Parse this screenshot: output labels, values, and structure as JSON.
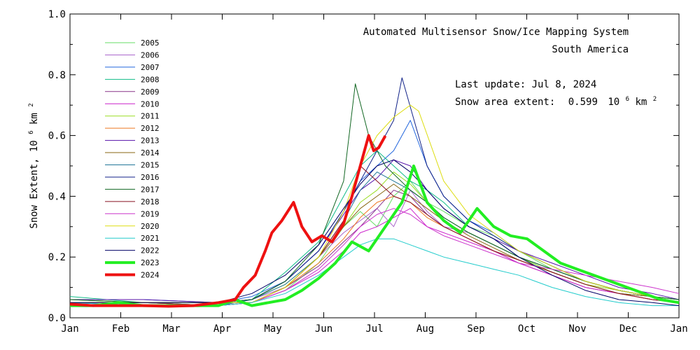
{
  "chart_data": {
    "type": "line",
    "title_lines": [
      "Automated  Multisensor Snow/Ice Mapping System",
      "South America"
    ],
    "update_text": "Last update: Jul  8, 2024",
    "extent_label": "Snow area extent:",
    "extent_value": "0.599",
    "extent_unit_base": "10",
    "extent_unit_exp": "6",
    "extent_unit_km": "km",
    "extent_unit_km_exp": "2",
    "ylabel_main": "Snow Extent,  10",
    "ylabel_exp1": "6",
    "ylabel_km": "km",
    "ylabel_exp2": "2",
    "ylim": [
      0,
      1.0
    ],
    "yticks": [
      "0.0",
      "0.2",
      "0.4",
      "0.6",
      "0.8",
      "1.0"
    ],
    "ytick_values": [
      0,
      0.2,
      0.4,
      0.6,
      0.8,
      1.0
    ],
    "xmonths": [
      "Jan",
      "Feb",
      "Mar",
      "Apr",
      "May",
      "Jun",
      "Jul",
      "Aug",
      "Sep",
      "Oct",
      "Nov",
      "Dec",
      "Jan"
    ],
    "legend_position": "upper-left",
    "grid": false,
    "series": [
      {
        "name": "2005",
        "color": "#66dd66",
        "width": 1,
        "x": [
          1,
          45,
          90,
          110,
          130,
          150,
          165,
          175,
          185,
          195,
          205,
          215,
          225,
          240,
          255,
          270,
          290,
          310,
          330,
          350,
          366
        ],
        "y": [
          0.06,
          0.05,
          0.05,
          0.05,
          0.09,
          0.18,
          0.3,
          0.35,
          0.3,
          0.4,
          0.45,
          0.38,
          0.35,
          0.3,
          0.27,
          0.22,
          0.16,
          0.12,
          0.09,
          0.07,
          0.06
        ]
      },
      {
        "name": "2006",
        "color": "#aa66cc",
        "width": 1,
        "x": [
          1,
          45,
          90,
          110,
          130,
          150,
          165,
          175,
          185,
          195,
          205,
          215,
          225,
          240,
          255,
          270,
          290,
          310,
          330,
          350,
          366
        ],
        "y": [
          0.05,
          0.05,
          0.04,
          0.06,
          0.1,
          0.2,
          0.28,
          0.32,
          0.36,
          0.3,
          0.42,
          0.35,
          0.3,
          0.28,
          0.24,
          0.2,
          0.15,
          0.11,
          0.08,
          0.07,
          0.05
        ]
      },
      {
        "name": "2007",
        "color": "#2266dd",
        "width": 1,
        "x": [
          1,
          45,
          90,
          110,
          130,
          150,
          165,
          175,
          185,
          195,
          205,
          215,
          225,
          240,
          255,
          270,
          290,
          310,
          330,
          350,
          366
        ],
        "y": [
          0.06,
          0.06,
          0.05,
          0.07,
          0.12,
          0.22,
          0.35,
          0.45,
          0.5,
          0.55,
          0.65,
          0.5,
          0.4,
          0.32,
          0.28,
          0.22,
          0.17,
          0.12,
          0.09,
          0.07,
          0.06
        ]
      },
      {
        "name": "2008",
        "color": "#11bb88",
        "width": 1,
        "x": [
          1,
          45,
          90,
          110,
          130,
          150,
          165,
          175,
          185,
          195,
          205,
          215,
          225,
          240,
          255,
          270,
          290,
          310,
          330,
          350,
          366
        ],
        "y": [
          0.07,
          0.05,
          0.05,
          0.06,
          0.15,
          0.25,
          0.4,
          0.5,
          0.55,
          0.5,
          0.45,
          0.42,
          0.38,
          0.3,
          0.26,
          0.2,
          0.15,
          0.11,
          0.08,
          0.07,
          0.06
        ]
      },
      {
        "name": "2009",
        "color": "#883388",
        "width": 1,
        "x": [
          1,
          45,
          90,
          110,
          130,
          150,
          165,
          175,
          185,
          195,
          205,
          215,
          225,
          240,
          255,
          270,
          290,
          310,
          330,
          350,
          366
        ],
        "y": [
          0.05,
          0.04,
          0.04,
          0.05,
          0.1,
          0.17,
          0.25,
          0.3,
          0.36,
          0.42,
          0.4,
          0.34,
          0.3,
          0.26,
          0.22,
          0.18,
          0.14,
          0.1,
          0.08,
          0.06,
          0.05
        ]
      },
      {
        "name": "2010",
        "color": "#cc22cc",
        "width": 1,
        "x": [
          1,
          45,
          90,
          110,
          130,
          150,
          165,
          175,
          185,
          195,
          205,
          215,
          225,
          240,
          255,
          270,
          290,
          310,
          330,
          350,
          366
        ],
        "y": [
          0.05,
          0.05,
          0.05,
          0.05,
          0.09,
          0.15,
          0.22,
          0.28,
          0.3,
          0.33,
          0.36,
          0.3,
          0.28,
          0.25,
          0.22,
          0.18,
          0.14,
          0.1,
          0.08,
          0.06,
          0.05
        ]
      },
      {
        "name": "2011",
        "color": "#99dd22",
        "width": 1,
        "x": [
          1,
          45,
          90,
          110,
          130,
          150,
          165,
          175,
          185,
          195,
          205,
          215,
          225,
          240,
          255,
          270,
          290,
          310,
          330,
          350,
          366
        ],
        "y": [
          0.06,
          0.05,
          0.05,
          0.06,
          0.11,
          0.2,
          0.3,
          0.38,
          0.42,
          0.48,
          0.44,
          0.38,
          0.33,
          0.28,
          0.24,
          0.2,
          0.15,
          0.11,
          0.09,
          0.07,
          0.06
        ]
      },
      {
        "name": "2012",
        "color": "#ee7722",
        "width": 1,
        "x": [
          1,
          45,
          90,
          110,
          130,
          150,
          165,
          175,
          185,
          195,
          205,
          215,
          225,
          240,
          255,
          270,
          290,
          310,
          330,
          350,
          366
        ],
        "y": [
          0.05,
          0.05,
          0.04,
          0.05,
          0.1,
          0.18,
          0.26,
          0.33,
          0.38,
          0.4,
          0.38,
          0.33,
          0.3,
          0.26,
          0.22,
          0.19,
          0.15,
          0.11,
          0.08,
          0.06,
          0.05
        ]
      },
      {
        "name": "2013",
        "color": "#5511aa",
        "width": 1,
        "x": [
          1,
          45,
          90,
          110,
          130,
          150,
          165,
          175,
          185,
          195,
          205,
          215,
          225,
          240,
          255,
          270,
          290,
          310,
          330,
          350,
          366
        ],
        "y": [
          0.06,
          0.06,
          0.05,
          0.06,
          0.12,
          0.22,
          0.34,
          0.42,
          0.46,
          0.52,
          0.5,
          0.42,
          0.36,
          0.3,
          0.26,
          0.22,
          0.18,
          0.14,
          0.1,
          0.08,
          0.06
        ]
      },
      {
        "name": "2014",
        "color": "#886611",
        "width": 1,
        "x": [
          1,
          45,
          90,
          110,
          130,
          150,
          165,
          175,
          185,
          195,
          205,
          215,
          225,
          240,
          255,
          270,
          290,
          310,
          330,
          350,
          366
        ],
        "y": [
          0.05,
          0.05,
          0.05,
          0.05,
          0.1,
          0.2,
          0.3,
          0.36,
          0.4,
          0.44,
          0.4,
          0.36,
          0.32,
          0.27,
          0.23,
          0.19,
          0.15,
          0.11,
          0.08,
          0.07,
          0.05
        ]
      },
      {
        "name": "2015",
        "color": "#227799",
        "width": 1,
        "x": [
          1,
          45,
          90,
          110,
          130,
          150,
          165,
          175,
          185,
          195,
          205,
          215,
          225,
          240,
          255,
          270,
          290,
          310,
          330,
          350,
          366
        ],
        "y": [
          0.05,
          0.05,
          0.04,
          0.06,
          0.11,
          0.2,
          0.32,
          0.42,
          0.48,
          0.45,
          0.42,
          0.38,
          0.33,
          0.28,
          0.24,
          0.2,
          0.16,
          0.12,
          0.09,
          0.07,
          0.05
        ]
      },
      {
        "name": "2016",
        "color": "#112288",
        "width": 1,
        "x": [
          1,
          45,
          90,
          110,
          130,
          150,
          165,
          175,
          185,
          195,
          200,
          215,
          225,
          240,
          255,
          270,
          290,
          310,
          330,
          350,
          366
        ],
        "y": [
          0.05,
          0.05,
          0.05,
          0.06,
          0.12,
          0.22,
          0.35,
          0.45,
          0.55,
          0.65,
          0.79,
          0.5,
          0.4,
          0.32,
          0.27,
          0.22,
          0.17,
          0.12,
          0.09,
          0.07,
          0.05
        ]
      },
      {
        "name": "2017",
        "color": "#116622",
        "width": 1,
        "x": [
          1,
          45,
          90,
          110,
          130,
          150,
          165,
          172,
          180,
          190,
          205,
          215,
          225,
          240,
          255,
          270,
          290,
          310,
          330,
          350,
          366
        ],
        "y": [
          0.06,
          0.05,
          0.05,
          0.06,
          0.12,
          0.24,
          0.45,
          0.77,
          0.6,
          0.5,
          0.42,
          0.38,
          0.33,
          0.28,
          0.24,
          0.2,
          0.16,
          0.12,
          0.09,
          0.07,
          0.06
        ]
      },
      {
        "name": "2018",
        "color": "#881122",
        "width": 1,
        "x": [
          1,
          45,
          90,
          110,
          130,
          150,
          165,
          175,
          185,
          195,
          205,
          215,
          225,
          240,
          255,
          270,
          290,
          310,
          330,
          350,
          366
        ],
        "y": [
          0.05,
          0.05,
          0.04,
          0.05,
          0.1,
          0.2,
          0.32,
          0.5,
          0.45,
          0.4,
          0.38,
          0.34,
          0.3,
          0.26,
          0.22,
          0.19,
          0.15,
          0.11,
          0.08,
          0.06,
          0.05
        ]
      },
      {
        "name": "2019",
        "color": "#cc33cc",
        "width": 1,
        "x": [
          1,
          45,
          90,
          110,
          130,
          150,
          165,
          175,
          185,
          195,
          205,
          215,
          225,
          240,
          255,
          270,
          290,
          310,
          330,
          350,
          366
        ],
        "y": [
          0.05,
          0.04,
          0.04,
          0.05,
          0.09,
          0.16,
          0.24,
          0.3,
          0.34,
          0.36,
          0.34,
          0.3,
          0.27,
          0.24,
          0.21,
          0.18,
          0.16,
          0.14,
          0.12,
          0.1,
          0.08
        ]
      },
      {
        "name": "2020",
        "color": "#dddd11",
        "width": 1,
        "x": [
          1,
          45,
          90,
          110,
          130,
          150,
          165,
          175,
          185,
          195,
          205,
          210,
          225,
          240,
          255,
          270,
          290,
          310,
          330,
          350,
          366
        ],
        "y": [
          0.05,
          0.05,
          0.05,
          0.05,
          0.1,
          0.2,
          0.35,
          0.5,
          0.6,
          0.66,
          0.7,
          0.68,
          0.45,
          0.34,
          0.28,
          0.22,
          0.17,
          0.12,
          0.09,
          0.07,
          0.05
        ]
      },
      {
        "name": "2021",
        "color": "#22cccc",
        "width": 1,
        "x": [
          1,
          45,
          90,
          110,
          130,
          150,
          165,
          175,
          185,
          195,
          205,
          215,
          225,
          240,
          255,
          270,
          290,
          310,
          330,
          350,
          366
        ],
        "y": [
          0.05,
          0.04,
          0.04,
          0.05,
          0.08,
          0.14,
          0.2,
          0.24,
          0.26,
          0.26,
          0.24,
          0.22,
          0.2,
          0.18,
          0.16,
          0.14,
          0.1,
          0.07,
          0.05,
          0.04,
          0.04
        ]
      },
      {
        "name": "2022",
        "color": "#000066",
        "width": 1,
        "x": [
          1,
          45,
          90,
          110,
          130,
          150,
          165,
          175,
          185,
          195,
          205,
          215,
          225,
          240,
          255,
          270,
          290,
          310,
          330,
          350,
          366
        ],
        "y": [
          0.05,
          0.05,
          0.05,
          0.08,
          0.14,
          0.24,
          0.36,
          0.44,
          0.5,
          0.52,
          0.48,
          0.42,
          0.36,
          0.3,
          0.26,
          0.2,
          0.14,
          0.09,
          0.06,
          0.05,
          0.04
        ]
      },
      {
        "name": "2023",
        "color": "#22ee22",
        "width": 4,
        "x": [
          1,
          15,
          30,
          45,
          60,
          75,
          90,
          100,
          110,
          120,
          130,
          140,
          150,
          160,
          170,
          180,
          190,
          200,
          207,
          215,
          225,
          235,
          245,
          255,
          265,
          275,
          285,
          295,
          305,
          315,
          325,
          335,
          345,
          355,
          366
        ],
        "y": [
          0.04,
          0.04,
          0.05,
          0.04,
          0.04,
          0.04,
          0.04,
          0.06,
          0.04,
          0.05,
          0.06,
          0.09,
          0.13,
          0.18,
          0.25,
          0.22,
          0.3,
          0.38,
          0.5,
          0.38,
          0.32,
          0.28,
          0.36,
          0.3,
          0.27,
          0.26,
          0.22,
          0.18,
          0.16,
          0.14,
          0.12,
          0.1,
          0.08,
          0.06,
          0.05
        ]
      },
      {
        "name": "2024",
        "color": "#ee1111",
        "width": 4,
        "x": [
          1,
          15,
          30,
          45,
          60,
          75,
          90,
          100,
          105,
          112,
          118,
          122,
          128,
          135,
          140,
          146,
          152,
          158,
          165,
          170,
          175,
          180,
          183,
          186,
          190
        ],
        "y": [
          0.045,
          0.04,
          0.04,
          0.04,
          0.038,
          0.04,
          0.05,
          0.06,
          0.1,
          0.14,
          0.22,
          0.28,
          0.32,
          0.38,
          0.3,
          0.25,
          0.27,
          0.25,
          0.31,
          0.4,
          0.5,
          0.6,
          0.55,
          0.56,
          0.599
        ]
      }
    ]
  }
}
